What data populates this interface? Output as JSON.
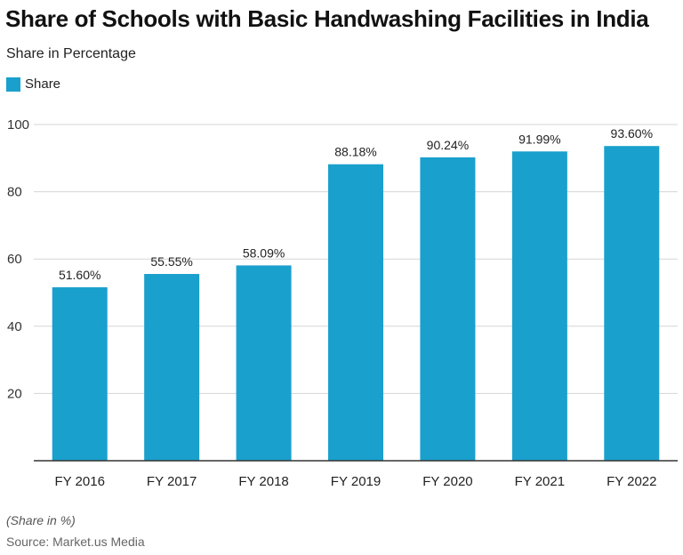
{
  "title": "Share of Schools with Basic Handwashing Facilities in India",
  "subtitle": "Share in Percentage",
  "footnote": "(Share in %)",
  "source": "Source: Market.us Media",
  "colors": {
    "bar": "#1aa0cd",
    "grid": "#d5d5d5",
    "axis": "#333333"
  },
  "chart_data": {
    "type": "bar",
    "categories": [
      "FY 2016",
      "FY 2017",
      "FY 2018",
      "FY 2019",
      "FY 2020",
      "FY 2021",
      "FY 2022"
    ],
    "series": [
      {
        "name": "Share",
        "values": [
          51.6,
          55.55,
          58.09,
          88.18,
          90.24,
          91.99,
          93.6
        ],
        "labels": [
          "51.60%",
          "55.55%",
          "58.09%",
          "88.18%",
          "90.24%",
          "91.99%",
          "93.60%"
        ]
      }
    ],
    "ylim": [
      0,
      100
    ],
    "yticks": [
      20,
      40,
      60,
      80,
      100
    ],
    "grid": true,
    "legend_position": "top-left"
  }
}
